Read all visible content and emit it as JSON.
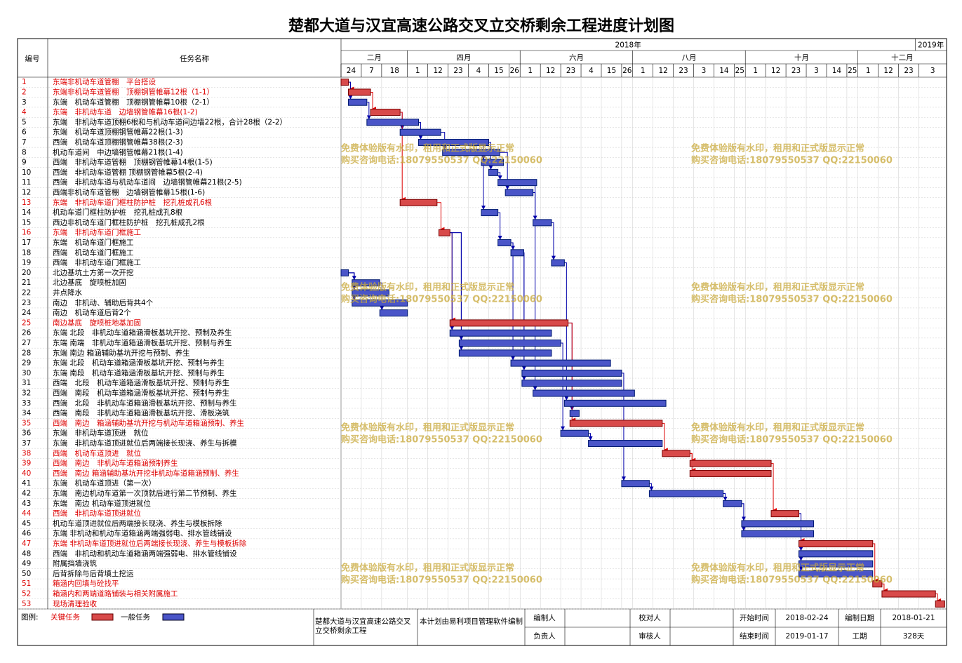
{
  "chart_data": {
    "type": "gantt",
    "title": "楚都大道与汉宜高速公路交叉立交桥剩余工程进度计划图",
    "id_header": "编号",
    "name_header": "任务名称",
    "xlim": [
      "2018-02-24",
      "2019-01-18"
    ],
    "years": [
      {
        "value": "2018-01-01",
        "label": "2018年"
      },
      {
        "value": "2019-01-01",
        "label": "2019年"
      }
    ],
    "months": [
      {
        "value": "2018-02-01",
        "label": "二月"
      },
      {
        "value": "2018-04-01",
        "label": "四月"
      },
      {
        "value": "2018-06-01",
        "label": "六月"
      },
      {
        "value": "2018-08-01",
        "label": "八月"
      },
      {
        "value": "2018-10-01",
        "label": "十月"
      },
      {
        "value": "2018-12-01",
        "label": "十二月"
      }
    ],
    "xticks": [
      {
        "value": "2018-02-24",
        "label": "24"
      },
      {
        "value": "2018-03-07",
        "label": "7"
      },
      {
        "value": "2018-03-18",
        "label": "18"
      },
      {
        "value": "2018-04-01",
        "label": "1"
      },
      {
        "value": "2018-04-12",
        "label": "12"
      },
      {
        "value": "2018-04-23",
        "label": "23"
      },
      {
        "value": "2018-05-04",
        "label": "4"
      },
      {
        "value": "2018-05-15",
        "label": "15"
      },
      {
        "value": "2018-05-26",
        "label": "26"
      },
      {
        "value": "2018-06-01",
        "label": "1"
      },
      {
        "value": "2018-06-12",
        "label": "12"
      },
      {
        "value": "2018-06-23",
        "label": "23"
      },
      {
        "value": "2018-07-04",
        "label": "4"
      },
      {
        "value": "2018-07-15",
        "label": "15"
      },
      {
        "value": "2018-07-26",
        "label": "26"
      },
      {
        "value": "2018-08-01",
        "label": "1"
      },
      {
        "value": "2018-08-12",
        "label": "12"
      },
      {
        "value": "2018-08-23",
        "label": "23"
      },
      {
        "value": "2018-09-03",
        "label": "3"
      },
      {
        "value": "2018-09-14",
        "label": "14"
      },
      {
        "value": "2018-09-25",
        "label": "25"
      },
      {
        "value": "2018-10-01",
        "label": "1"
      },
      {
        "value": "2018-10-12",
        "label": "12"
      },
      {
        "value": "2018-10-23",
        "label": "23"
      },
      {
        "value": "2018-11-03",
        "label": "3"
      },
      {
        "value": "2018-11-14",
        "label": "14"
      },
      {
        "value": "2018-11-25",
        "label": "25"
      },
      {
        "value": "2018-12-01",
        "label": "1"
      },
      {
        "value": "2018-12-12",
        "label": "12"
      },
      {
        "value": "2018-12-23",
        "label": "23"
      },
      {
        "value": "2019-01-03",
        "label": "3"
      }
    ],
    "critical_color": "#d84a4a",
    "normal_color": "#4a55c8",
    "tasks": [
      {
        "id": 1,
        "name": "东端非机动车道管棚　平台搭设",
        "critical": true,
        "start": "2018-02-24",
        "end": "2018-02-28",
        "predecessors": []
      },
      {
        "id": 2,
        "name": "东端非机动车道管棚　顶棚钢管帷幕12根（1-1）",
        "critical": true,
        "start": "2018-02-28",
        "end": "2018-03-12",
        "predecessors": [
          1
        ]
      },
      {
        "id": 3,
        "name": "东端　机动车道管棚　顶棚钢管帷幕10根（2-1）",
        "critical": false,
        "start": "2018-02-28",
        "end": "2018-03-10",
        "predecessors": [
          1
        ]
      },
      {
        "id": 4,
        "name": "东端　非机动车道　边墙钢管帷幕16根(1-2)",
        "critical": true,
        "start": "2018-03-12",
        "end": "2018-03-28",
        "predecessors": [
          2
        ]
      },
      {
        "id": 5,
        "name": "东端　非机动车道顶棚6根和与机动车道间边墙22根，合计28根（2-2）",
        "critical": false,
        "start": "2018-03-10",
        "end": "2018-04-07",
        "predecessors": [
          3
        ]
      },
      {
        "id": 6,
        "name": "东端　机动车道顶棚钢管帷幕22根(1-3)",
        "critical": false,
        "start": "2018-03-28",
        "end": "2018-04-19",
        "predecessors": [
          4
        ]
      },
      {
        "id": 7,
        "name": "西端　机动车道顶棚钢管帷幕38根(2-3)",
        "critical": false,
        "start": "2018-04-07",
        "end": "2018-05-15",
        "predecessors": [
          5
        ]
      },
      {
        "id": 8,
        "name": "机动车道间　中边墙钢管帷幕21根(1-4)",
        "critical": false,
        "start": "2018-04-20",
        "end": "2018-05-21",
        "predecessors": [
          6
        ]
      },
      {
        "id": 9,
        "name": "西端　非机动车道管棚　顶棚钢管帷幕14根(1-5)",
        "critical": false,
        "start": "2018-05-11",
        "end": "2018-05-23",
        "predecessors": [
          7
        ]
      },
      {
        "id": 10,
        "name": "西端　非机动车道管棚 顶棚钢管帷幕5根(2-4)",
        "critical": false,
        "start": "2018-05-15",
        "end": "2018-05-20",
        "predecessors": [
          7
        ]
      },
      {
        "id": 11,
        "name": "西端　非机动车道与机动车道间　边墙钢管帷幕21根(2-5)",
        "critical": false,
        "start": "2018-05-20",
        "end": "2018-06-10",
        "predecessors": [
          10
        ]
      },
      {
        "id": 12,
        "name": "西端非机动车道管棚　边墙钢管帷幕15根(1-6)",
        "critical": false,
        "start": "2018-05-24",
        "end": "2018-06-08",
        "predecessors": [
          8
        ]
      },
      {
        "id": 13,
        "name": "东端　非机动车道门框柱防护桩　挖孔桩成孔6根",
        "critical": true,
        "start": "2018-03-28",
        "end": "2018-04-17",
        "predecessors": [
          4
        ]
      },
      {
        "id": 14,
        "name": "机动车道门框柱防护桩　挖孔桩成孔8根",
        "critical": false,
        "start": "2018-05-11",
        "end": "2018-05-20",
        "predecessors": [
          7
        ]
      },
      {
        "id": 15,
        "name": "西边非机动车道门框柱防护桩　挖孔桩成孔2根",
        "critical": false,
        "start": "2018-06-08",
        "end": "2018-06-18",
        "predecessors": [
          12
        ]
      },
      {
        "id": 16,
        "name": "东端　非机动车道门框施工",
        "critical": true,
        "start": "2018-04-18",
        "end": "2018-04-24",
        "predecessors": [
          13
        ]
      },
      {
        "id": 17,
        "name": "东端　机动车道门框施工",
        "critical": false,
        "start": "2018-05-20",
        "end": "2018-05-27",
        "predecessors": [
          14
        ]
      },
      {
        "id": 18,
        "name": "西端　机动车道门框施工",
        "critical": false,
        "start": "2018-05-27",
        "end": "2018-06-03",
        "predecessors": [
          17
        ]
      },
      {
        "id": 19,
        "name": "西端　非机动车道门框施工",
        "critical": false,
        "start": "2018-06-18",
        "end": "2018-06-25",
        "predecessors": [
          15
        ]
      },
      {
        "id": 20,
        "name": "北边基坑土方第一次开挖",
        "critical": false,
        "start": "2018-02-24",
        "end": "2018-02-28",
        "predecessors": []
      },
      {
        "id": 21,
        "name": "北边基底　旋喷桩加固",
        "critical": false,
        "start": "2018-03-02",
        "end": "2018-03-17",
        "predecessors": [
          20
        ]
      },
      {
        "id": 22,
        "name": "井点降水",
        "critical": false,
        "start": "2018-03-02",
        "end": "2018-03-22",
        "predecessors": [
          20
        ]
      },
      {
        "id": 23,
        "name": "南边　非机动、辅助后背共4个",
        "critical": false,
        "start": "2018-03-02",
        "end": "2018-04-01",
        "predecessors": [
          20
        ]
      },
      {
        "id": 24,
        "name": "南边　机动车道后背2个",
        "critical": false,
        "start": "2018-03-17",
        "end": "2018-04-01",
        "predecessors": [
          21
        ]
      },
      {
        "id": 25,
        "name": "南边基底　旋喷桩地基加固",
        "critical": true,
        "start": "2018-04-24",
        "end": "2018-06-27",
        "predecessors": [
          16
        ]
      },
      {
        "id": 26,
        "name": "东端 北段　非机动车道箱涵滑板基坑开挖、预制及养生",
        "critical": false,
        "start": "2018-04-24",
        "end": "2018-06-18",
        "predecessors": [
          16
        ]
      },
      {
        "id": 27,
        "name": "东端 南端　非机动车道箱涵滑板基坑开挖、预制与养生",
        "critical": false,
        "start": "2018-04-29",
        "end": "2018-06-23",
        "predecessors": [
          16
        ]
      },
      {
        "id": 28,
        "name": "东端 南边 箱涵辅助基坑开挖与预制、养生",
        "critical": false,
        "start": "2018-04-29",
        "end": "2018-06-18",
        "predecessors": [
          16
        ]
      },
      {
        "id": 29,
        "name": "东端 北段　机动车道箱涵滑板基坑开挖、预制与养生",
        "critical": false,
        "start": "2018-05-27",
        "end": "2018-07-20",
        "predecessors": [
          17
        ]
      },
      {
        "id": 30,
        "name": "东端 南段　机动车道箱涵滑板基坑开挖、预制与养生",
        "critical": false,
        "start": "2018-06-02",
        "end": "2018-07-26",
        "predecessors": [
          18
        ]
      },
      {
        "id": 31,
        "name": "西端　北段　机动车道箱涵滑板基坑开挖、预制与养生",
        "critical": false,
        "start": "2018-06-02",
        "end": "2018-07-26",
        "predecessors": [
          18
        ]
      },
      {
        "id": 32,
        "name": "西端　南段　机动车道箱涵滑板基坑开挖、预制与养生",
        "critical": false,
        "start": "2018-06-08",
        "end": "2018-08-02",
        "predecessors": [
          11
        ]
      },
      {
        "id": 33,
        "name": "西端　北段　非机动车道箱涵滑板基坑开挖、预制与养生",
        "critical": false,
        "start": "2018-06-25",
        "end": "2018-08-19",
        "predecessors": [
          19
        ]
      },
      {
        "id": 34,
        "name": "西端　南段　非机动车道箱涵滑板基坑开挖、滑板浇筑",
        "critical": false,
        "start": "2018-06-28",
        "end": "2018-07-03",
        "predecessors": [
          25
        ]
      },
      {
        "id": 35,
        "name": "西端　南边　箱涵辅助基坑开挖与机动车道箱涵预制、养生",
        "critical": true,
        "start": "2018-06-28",
        "end": "2018-08-17",
        "predecessors": [
          25
        ]
      },
      {
        "id": 36,
        "name": "东端　非机动车道顶进　就位",
        "critical": false,
        "start": "2018-06-23",
        "end": "2018-07-08",
        "predecessors": [
          27
        ]
      },
      {
        "id": 37,
        "name": "东端　非机动车道顶进就位后两端接长现浇、养生与拆模",
        "critical": false,
        "start": "2018-07-08",
        "end": "2018-08-17",
        "predecessors": [
          36
        ]
      },
      {
        "id": 38,
        "name": "西端　机动车道顶进　就位",
        "critical": true,
        "start": "2018-08-17",
        "end": "2018-09-01",
        "predecessors": [
          35
        ]
      },
      {
        "id": 39,
        "name": "西端　南边　非机动车道箱涵预制养生",
        "critical": true,
        "start": "2018-09-01",
        "end": "2018-10-15",
        "predecessors": [
          38
        ]
      },
      {
        "id": 40,
        "name": "西端　南边 箱涵辅助基坑开挖非机动车道箱涵预制、养生",
        "critical": true,
        "start": "2018-09-01",
        "end": "2018-10-15",
        "predecessors": [
          38
        ]
      },
      {
        "id": 41,
        "name": "东端　机动车道顶进（第一次）",
        "critical": false,
        "start": "2018-07-26",
        "end": "2018-08-10",
        "predecessors": [
          30
        ]
      },
      {
        "id": 42,
        "name": "东端　南边机动车道第一次顶就后进行第二节预制、养生",
        "critical": false,
        "start": "2018-08-10",
        "end": "2018-09-19",
        "predecessors": [
          41
        ]
      },
      {
        "id": 43,
        "name": "东端　南边 机动车道顶进就位",
        "critical": false,
        "start": "2018-09-19",
        "end": "2018-09-29",
        "predecessors": [
          42
        ]
      },
      {
        "id": 44,
        "name": "西端　非机动车道顶进就位",
        "critical": true,
        "start": "2018-10-15",
        "end": "2018-10-30",
        "predecessors": [
          39
        ]
      },
      {
        "id": 45,
        "name": "机动车道顶进就位后两端接长现浇、养生与模板拆除",
        "critical": false,
        "start": "2018-09-29",
        "end": "2018-11-07",
        "predecessors": [
          43
        ]
      },
      {
        "id": 46,
        "name": "东端 非机动和机动车道箱涵两端强弱电、排水管线铺设",
        "critical": false,
        "start": "2018-09-29",
        "end": "2018-11-07",
        "predecessors": [
          43
        ]
      },
      {
        "id": 47,
        "name": "东端 非机动车道顶进就位后两端接长现浇、养生与模板拆除",
        "critical": true,
        "start": "2018-10-30",
        "end": "2018-12-09",
        "predecessors": [
          44
        ]
      },
      {
        "id": 48,
        "name": "西端　非机动和机动车道箱涵两端强弱电、排水管线铺设",
        "critical": false,
        "start": "2018-10-30",
        "end": "2018-12-09",
        "predecessors": [
          44
        ]
      },
      {
        "id": 49,
        "name": "附属挡墙浇筑",
        "critical": false,
        "start": "2018-10-30",
        "end": "2018-12-09",
        "predecessors": [
          44
        ]
      },
      {
        "id": 50,
        "name": "后背拆除与后背填土挖运",
        "critical": false,
        "start": "2018-10-30",
        "end": "2018-12-09",
        "predecessors": [
          44
        ]
      },
      {
        "id": 51,
        "name": "箱涵内回填与砼找平",
        "critical": true,
        "start": "2018-12-09",
        "end": "2018-12-14",
        "predecessors": [
          47
        ]
      },
      {
        "id": 52,
        "name": "箱涵内和两端道路铺装与相关附属施工",
        "critical": true,
        "start": "2018-12-14",
        "end": "2019-01-12",
        "predecessors": [
          51
        ]
      },
      {
        "id": 53,
        "name": "现场清理验收",
        "critical": true,
        "start": "2019-01-12",
        "end": "2019-01-17",
        "predecessors": [
          52
        ]
      }
    ],
    "watermark": [
      "免费体验版有水印，租用和正式版显示正常",
      "购买咨询电话:18079550537 QQ:22150060"
    ],
    "legend": {
      "label": "图例:",
      "critical": "关键任务",
      "normal": "一般任务"
    },
    "footer": {
      "project": "楚都大道与汉宜高速公路交叉立交桥剩余工程",
      "software": "本计划由易利项目管理软件编制",
      "prepared_by": "编制人",
      "responsible": "负责人",
      "checked_by": "校对人",
      "reviewed_by": "审核人",
      "start_label": "开始时间",
      "start": "2018-02-24",
      "end_label": "结束时间",
      "end": "2019-01-17",
      "date_label": "编制日期",
      "date": "2018-01-21",
      "duration_label": "工期",
      "duration": "328天"
    }
  }
}
